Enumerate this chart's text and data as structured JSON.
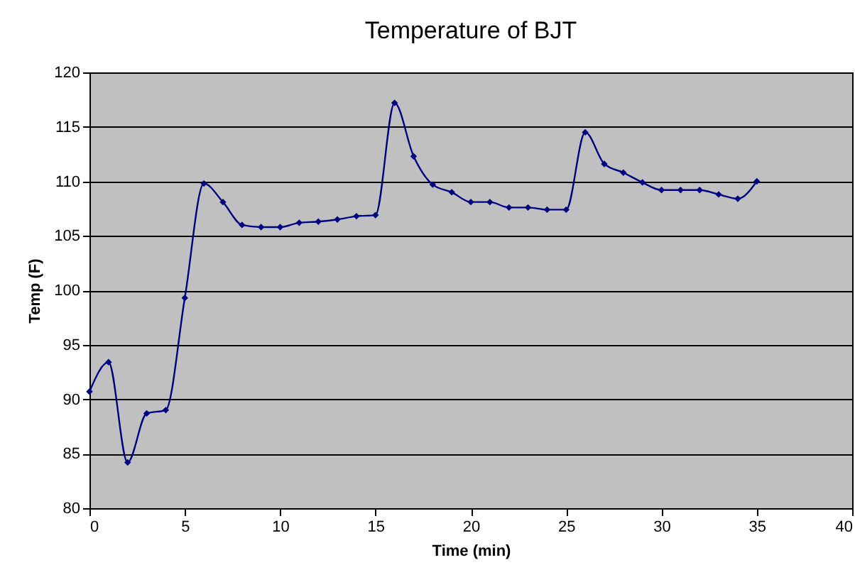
{
  "chart_data": {
    "type": "line",
    "title": "Temperature of BJT",
    "xlabel": "Time (min)",
    "ylabel": "Temp (F)",
    "x": [
      0,
      1,
      2,
      3,
      4,
      5,
      6,
      7,
      8,
      9,
      10,
      11,
      12,
      13,
      14,
      15,
      16,
      17,
      18,
      19,
      20,
      21,
      22,
      23,
      24,
      25,
      26,
      27,
      28,
      29,
      30,
      31,
      32,
      33,
      34,
      35
    ],
    "series": [
      {
        "color": "#000080",
        "values": [
          90.7,
          93.4,
          84.2,
          88.7,
          89.0,
          99.3,
          109.8,
          108.1,
          106.0,
          105.8,
          105.8,
          106.2,
          106.3,
          106.5,
          106.8,
          106.9,
          117.2,
          112.3,
          109.7,
          109.0,
          108.1,
          108.1,
          107.6,
          107.6,
          107.4,
          107.4,
          114.5,
          111.6,
          110.8,
          109.9,
          109.2,
          109.2,
          109.2,
          108.8,
          108.4,
          110.0
        ]
      }
    ],
    "xlim": [
      0,
      40
    ],
    "xticks": [
      0,
      5,
      10,
      15,
      20,
      25,
      30,
      35,
      40
    ],
    "ylim": [
      80,
      120
    ],
    "yticks": [
      80,
      85,
      90,
      95,
      100,
      105,
      110,
      115,
      120
    ],
    "grid": "y",
    "marker": "diamond",
    "line_style": "solid"
  }
}
